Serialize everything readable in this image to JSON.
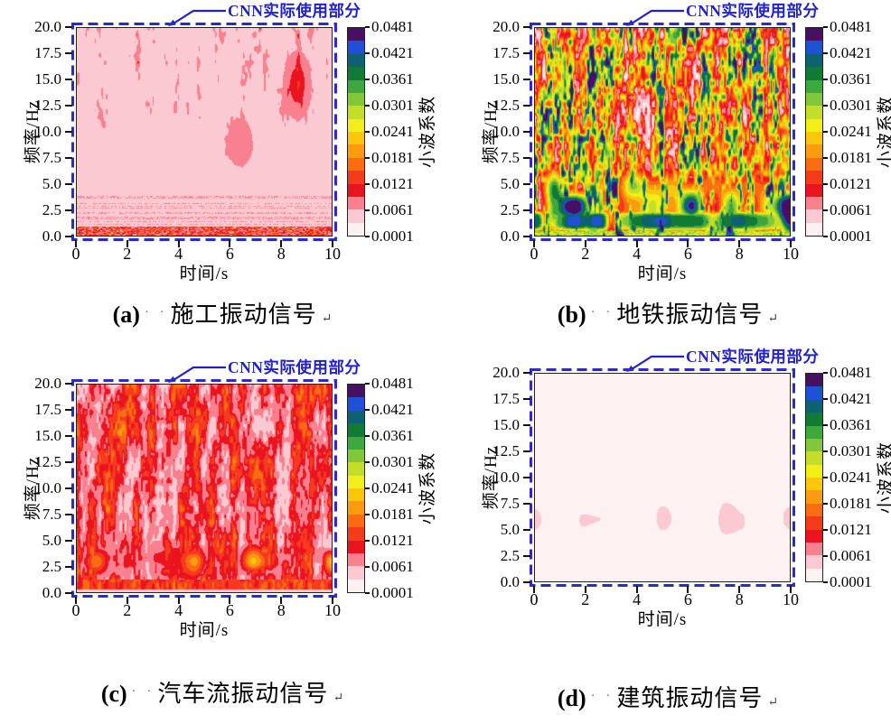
{
  "figure": {
    "annotation_color": "#2020cc",
    "dash_border_color": "#2a2ace",
    "value_range": [
      0.0001,
      0.0481
    ]
  },
  "colormap": {
    "band_colors": [
      "#fdf1f2",
      "#fbc9d1",
      "#f8808f",
      "#ea1420",
      "#f53a1e",
      "#f96c12",
      "#fa9b10",
      "#fcc60b",
      "#f1ee18",
      "#c3dd2a",
      "#82c63a",
      "#3ea73d",
      "#117b35",
      "#0d6170",
      "#1f51d4",
      "#471063"
    ]
  },
  "chart_data": [
    {
      "id": "a",
      "type": "heatmap",
      "caption_prefix": "(a)",
      "caption_dots": "· ·",
      "caption_text": "施工振动信号",
      "caption_mark": "↵",
      "xlabel": "时间/s",
      "ylabel": "频率/Hz",
      "x_range": [
        0,
        10
      ],
      "y_range": [
        0,
        20
      ],
      "x_ticks": [
        "0",
        "2",
        "4",
        "6",
        "8",
        "10"
      ],
      "y_ticks": [
        "0.0",
        "2.5",
        "5.0",
        "7.5",
        "10.0",
        "12.5",
        "15.0",
        "17.5",
        "20.0"
      ],
      "colorbar": {
        "label": "小波系数",
        "ticks": [
          "0.0001",
          "0.0061",
          "0.0121",
          "0.0181",
          "0.0241",
          "0.0301",
          "0.0361",
          "0.0421",
          "0.0481"
        ]
      },
      "annotation": "CNN实际使用部分",
      "description": "浅粉色低幅值背景；6–20 Hz有浅红色细竖条纹；8.5–9 s、13–16 Hz处出现较强红色斑块；0–1 Hz为红色密集噪点带；1–4 Hz有断续细点线；小波系数大多低于0.006",
      "render": {
        "kind": "construction",
        "seed": 11
      }
    },
    {
      "id": "b",
      "type": "heatmap",
      "caption_prefix": "(b)",
      "caption_dots": "· ·",
      "caption_text": "地铁振动信号",
      "caption_mark": "↵",
      "xlabel": "时间/s",
      "ylabel": "频率/Hz",
      "x_range": [
        0,
        10
      ],
      "y_range": [
        0,
        20
      ],
      "x_ticks": [
        "0",
        "2",
        "4",
        "6",
        "8",
        "10"
      ],
      "y_ticks": [
        "0.0",
        "2.5",
        "5.0",
        "7.5",
        "10.0",
        "12.5",
        "15.0",
        "17.5",
        "20.0"
      ],
      "colorbar": {
        "label": "小波系数",
        "ticks": [
          "0.0001",
          "0.0061",
          "0.0121",
          "0.0181",
          "0.0241",
          "0.0301",
          "0.0361",
          "0.0421",
          "0.0481"
        ]
      },
      "annotation": "CNN实际使用部分",
      "description": "全频带强烈竖条纹，系数覆盖整个色标(白—红—黄—绿—蓝—紫)；0–5 Hz出现高系数(>0.036)蓝紫色团块并带彩色环纹；1–2 Hz为深蓝色条带夹白色透镜状空白；最底部为黄绿色细噪点行",
      "render": {
        "kind": "metro",
        "seed": 7
      }
    },
    {
      "id": "c",
      "type": "heatmap",
      "caption_prefix": "(c)",
      "caption_dots": "· ·",
      "caption_text": "汽车流振动信号",
      "caption_mark": "↵",
      "xlabel": "时间/s",
      "ylabel": "频率/Hz",
      "x_range": [
        0,
        10
      ],
      "y_range": [
        0,
        20
      ],
      "x_ticks": [
        "0",
        "2",
        "4",
        "6",
        "8",
        "10"
      ],
      "y_ticks": [
        "0.0",
        "2.5",
        "5.0",
        "7.5",
        "10.0",
        "12.5",
        "15.0",
        "17.5",
        "20.0"
      ],
      "colorbar": {
        "label": "小波系数",
        "ticks": [
          "0.0001",
          "0.0061",
          "0.0121",
          "0.0181",
          "0.0241",
          "0.0301",
          "0.0361",
          "0.0421",
          "0.0481"
        ]
      },
      "annotation": "CNN实际使用部分",
      "description": "以红色竖条纹为主(系数约0.003–0.012)，条纹间为浅粉色间隙；2–5 Hz存在橙色较强斑点(约0.015)；0–1 Hz为红色条带，最底部近白色",
      "render": {
        "kind": "traffic",
        "seed": 23
      }
    },
    {
      "id": "d",
      "type": "heatmap",
      "caption_prefix": "(d)",
      "caption_dots": "· ·",
      "caption_text": "建筑振动信号",
      "caption_mark": "↵",
      "xlabel": "时间/s",
      "ylabel": "频率/Hz",
      "x_range": [
        0,
        10
      ],
      "y_range": [
        0,
        20
      ],
      "x_ticks": [
        "0",
        "2",
        "4",
        "6",
        "8",
        "10"
      ],
      "y_ticks": [
        "0.0",
        "2.5",
        "5.0",
        "7.5",
        "10.0",
        "12.5",
        "15.0",
        "17.5",
        "20.0"
      ],
      "colorbar": {
        "label": "小波系数",
        "ticks": [
          "0.0001",
          "0.0061",
          "0.0121",
          "0.0181",
          "0.0241",
          "0.0301",
          "0.0361",
          "0.0421",
          "0.0481"
        ]
      },
      "annotation": "CNN实际使用部分",
      "description": "整体接近白色(系数<0.003)，仅4–8 Hz之间有断续的浅粉色小团块",
      "render": {
        "kind": "building",
        "seed": 5
      }
    }
  ]
}
